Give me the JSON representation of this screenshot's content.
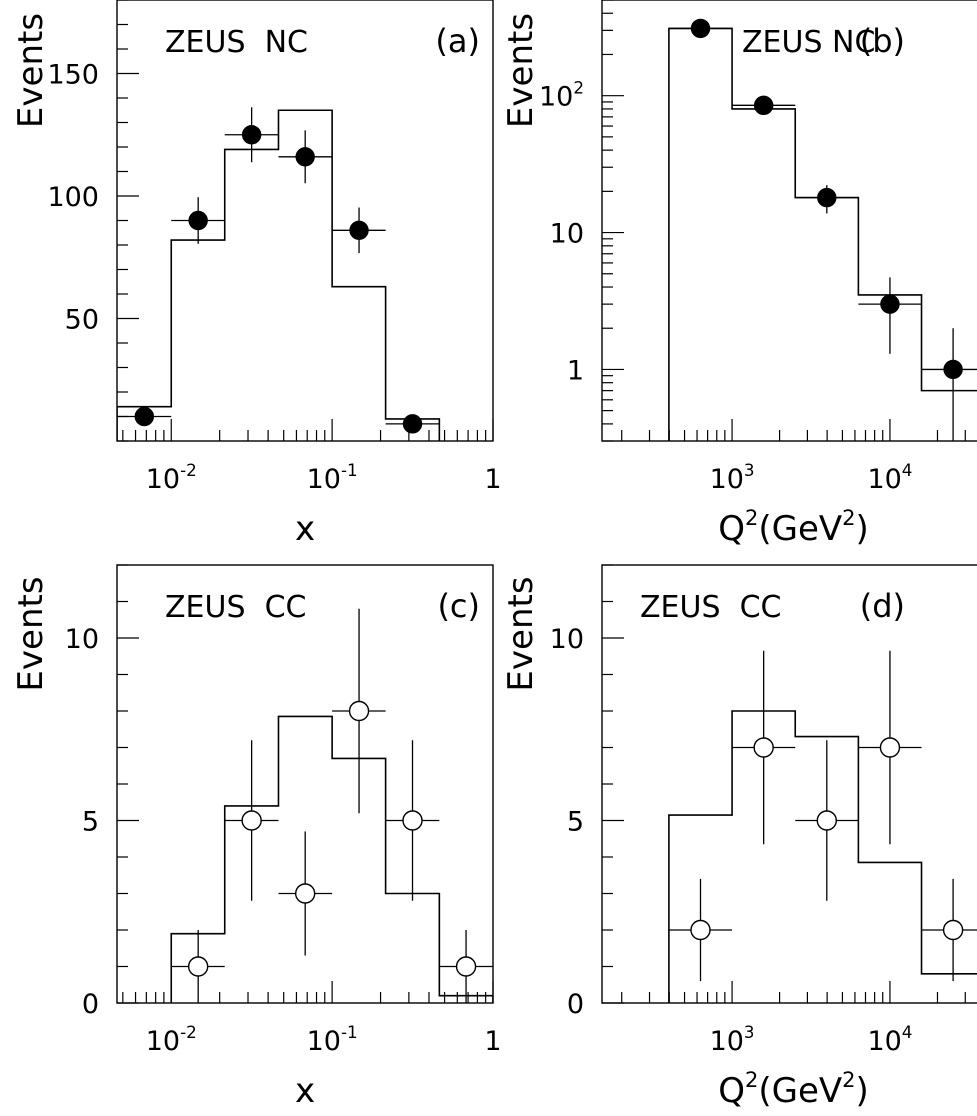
{
  "chart_data": [
    {
      "id": "a",
      "type": "histogram",
      "title": "ZEUS  NC",
      "panel_label": "(a)",
      "ylabel": "Events",
      "xlabel": "x",
      "x_scale": "log",
      "xlim": [
        0.0046,
        1.0
      ],
      "y_scale": "linear",
      "ylim": [
        0,
        180
      ],
      "y_ticks": [
        50,
        100,
        150
      ],
      "y_tick_labels": [
        "50",
        "100",
        "150"
      ],
      "x_major_ticks": [
        0.01,
        0.1,
        1
      ],
      "x_tick_labels": [
        {
          "base": "10",
          "exp": "-2"
        },
        {
          "base": "10",
          "exp": "-1"
        },
        {
          "base": "1",
          "exp": ""
        }
      ],
      "histogram": {
        "edges": [
          0.0046,
          0.01,
          0.0215,
          0.0464,
          0.1,
          0.215,
          0.464
        ],
        "values": [
          14,
          82,
          119,
          135,
          63,
          9
        ]
      },
      "points": {
        "marker": "filled",
        "x": [
          0.0068,
          0.0147,
          0.0316,
          0.068,
          0.147,
          0.316
        ],
        "xerr_low": [
          0.0046,
          0.01,
          0.0215,
          0.0464,
          0.1,
          0.215
        ],
        "xerr_high": [
          0.01,
          0.0215,
          0.0464,
          0.1,
          0.215,
          0.464
        ],
        "y": [
          10,
          90,
          125,
          116,
          86,
          7
        ],
        "yerr": [
          3.2,
          9.5,
          11.2,
          10.8,
          9.3,
          2.6
        ]
      }
    },
    {
      "id": "b",
      "type": "histogram",
      "title": "ZEUS NC",
      "panel_label": "(b)",
      "ylabel": "Events",
      "xlabel": "Q²(GeV²)",
      "xlabel_parts": {
        "q": "Q",
        "q_exp": "2",
        "unit_open": "(GeV",
        "unit_exp": "2",
        "unit_close": ")"
      },
      "x_scale": "log",
      "xlim": [
        150,
        40000
      ],
      "y_scale": "log",
      "ylim": [
        0.3,
        500
      ],
      "y_ticks": [
        1,
        10,
        100
      ],
      "y_tick_labels": [
        {
          "base": "1",
          "exp": ""
        },
        {
          "base": "10",
          "exp": ""
        },
        {
          "base": "10",
          "exp": "2"
        }
      ],
      "x_major_ticks": [
        1000,
        10000
      ],
      "x_tick_labels": [
        {
          "base": "10",
          "exp": "3"
        },
        {
          "base": "10",
          "exp": "4"
        }
      ],
      "histogram": {
        "edges": [
          398,
          1000,
          2512,
          6310,
          15849,
          40000
        ],
        "values": [
          310,
          80,
          18,
          3.5,
          0.7
        ]
      },
      "points": {
        "marker": "filled",
        "x": [
          631,
          1585,
          3981,
          10000,
          25119
        ],
        "xerr_low": [
          398,
          1000,
          2512,
          6310,
          15849
        ],
        "xerr_high": [
          1000,
          2512,
          6310,
          15849,
          40000
        ],
        "y": [
          310,
          85,
          18,
          3,
          1
        ],
        "yerr": [
          18,
          9.2,
          4.2,
          1.7,
          1.0
        ]
      }
    },
    {
      "id": "c",
      "type": "histogram",
      "title": "ZEUS  CC",
      "panel_label": "(c)",
      "ylabel": "Events",
      "xlabel": "x",
      "x_scale": "log",
      "xlim": [
        0.0046,
        1.0
      ],
      "y_scale": "linear",
      "ylim": [
        0,
        12
      ],
      "y_ticks": [
        0,
        5,
        10
      ],
      "y_tick_labels": [
        "0",
        "5",
        "10"
      ],
      "x_major_ticks": [
        0.01,
        0.1,
        1
      ],
      "x_tick_labels": [
        {
          "base": "10",
          "exp": "-2"
        },
        {
          "base": "10",
          "exp": "-1"
        },
        {
          "base": "1",
          "exp": ""
        }
      ],
      "histogram": {
        "edges": [
          0.01,
          0.0215,
          0.0464,
          0.1,
          0.215,
          0.464,
          1.0
        ],
        "values": [
          1.9,
          5.4,
          7.85,
          6.7,
          3.0,
          0.2
        ]
      },
      "points": {
        "marker": "open",
        "x": [
          0.0147,
          0.0316,
          0.068,
          0.147,
          0.316,
          0.68
        ],
        "xerr_low": [
          0.01,
          0.0215,
          0.0464,
          0.1,
          0.215,
          0.464
        ],
        "xerr_high": [
          0.0215,
          0.0464,
          0.1,
          0.215,
          0.464,
          1.0
        ],
        "y": [
          1,
          5,
          3,
          8,
          5,
          1
        ],
        "yerr": [
          1.0,
          2.2,
          1.7,
          2.8,
          2.2,
          1.0
        ]
      }
    },
    {
      "id": "d",
      "type": "histogram",
      "title": "ZEUS  CC",
      "panel_label": "(d)",
      "ylabel": "Events",
      "xlabel": "Q²(GeV²)",
      "xlabel_parts": {
        "q": "Q",
        "q_exp": "2",
        "unit_open": "(GeV",
        "unit_exp": "2",
        "unit_close": ")"
      },
      "x_scale": "log",
      "xlim": [
        150,
        40000
      ],
      "y_scale": "linear",
      "ylim": [
        0,
        12
      ],
      "y_ticks": [
        0,
        5,
        10
      ],
      "y_tick_labels": [
        "0",
        "5",
        "10"
      ],
      "x_major_ticks": [
        1000,
        10000
      ],
      "x_tick_labels": [
        {
          "base": "10",
          "exp": "3"
        },
        {
          "base": "10",
          "exp": "4"
        }
      ],
      "histogram": {
        "edges": [
          398,
          1000,
          2512,
          6310,
          15849,
          40000
        ],
        "values": [
          5.15,
          8.0,
          7.3,
          3.85,
          0.8
        ]
      },
      "points": {
        "marker": "open",
        "x": [
          631,
          1585,
          3981,
          10000,
          25119
        ],
        "xerr_low": [
          398,
          1000,
          2512,
          6310,
          15849
        ],
        "xerr_high": [
          1000,
          2512,
          6310,
          15849,
          40000
        ],
        "y": [
          2,
          7,
          5,
          7,
          2
        ],
        "yerr": [
          1.4,
          2.65,
          2.2,
          2.65,
          1.4
        ]
      }
    }
  ]
}
